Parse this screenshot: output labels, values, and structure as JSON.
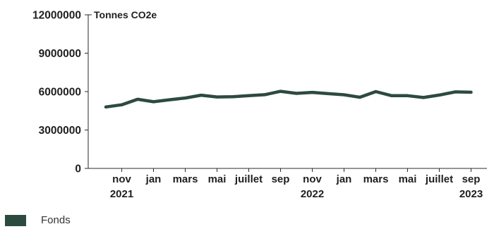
{
  "chart_data": {
    "type": "line",
    "unit_label": "Tonnes CO2e",
    "y_ticks": [
      0,
      3000000,
      6000000,
      9000000,
      12000000
    ],
    "y_tick_labels": [
      "0",
      "3000000",
      "6000000",
      "9000000",
      "12000000"
    ],
    "ylim": [
      0,
      12000000
    ],
    "grid": false,
    "legend_position": "bottom-left",
    "x": [
      "2021-10",
      "2021-11",
      "2021-12",
      "2022-01",
      "2022-02",
      "2022-03",
      "2022-04",
      "2022-05",
      "2022-06",
      "2022-07",
      "2022-08",
      "2022-09",
      "2022-10",
      "2022-11",
      "2022-12",
      "2023-01",
      "2023-02",
      "2023-03",
      "2023-04",
      "2023-05",
      "2023-06",
      "2023-07",
      "2023-08",
      "2023-09"
    ],
    "x_ticks": [
      {
        "month": "2021-11",
        "label": "nov",
        "year": "2021"
      },
      {
        "month": "2022-01",
        "label": "jan",
        "year": ""
      },
      {
        "month": "2022-03",
        "label": "mars",
        "year": ""
      },
      {
        "month": "2022-05",
        "label": "mai",
        "year": ""
      },
      {
        "month": "2022-07",
        "label": "juillet",
        "year": ""
      },
      {
        "month": "2022-09",
        "label": "sep",
        "year": ""
      },
      {
        "month": "2022-11",
        "label": "nov",
        "year": "2022"
      },
      {
        "month": "2023-01",
        "label": "jan",
        "year": ""
      },
      {
        "month": "2023-03",
        "label": "mars",
        "year": ""
      },
      {
        "month": "2023-05",
        "label": "mai",
        "year": ""
      },
      {
        "month": "2023-07",
        "label": "juillet",
        "year": ""
      },
      {
        "month": "2023-09",
        "label": "sep",
        "year": "2023"
      }
    ],
    "series": [
      {
        "name": "Fonds",
        "color": "#2d4a3e",
        "values": [
          4800000,
          4970000,
          5400000,
          5210000,
          5360000,
          5500000,
          5720000,
          5580000,
          5600000,
          5680000,
          5760000,
          6020000,
          5860000,
          5940000,
          5840000,
          5750000,
          5560000,
          6000000,
          5680000,
          5680000,
          5540000,
          5730000,
          5980000,
          5950000
        ]
      }
    ]
  }
}
